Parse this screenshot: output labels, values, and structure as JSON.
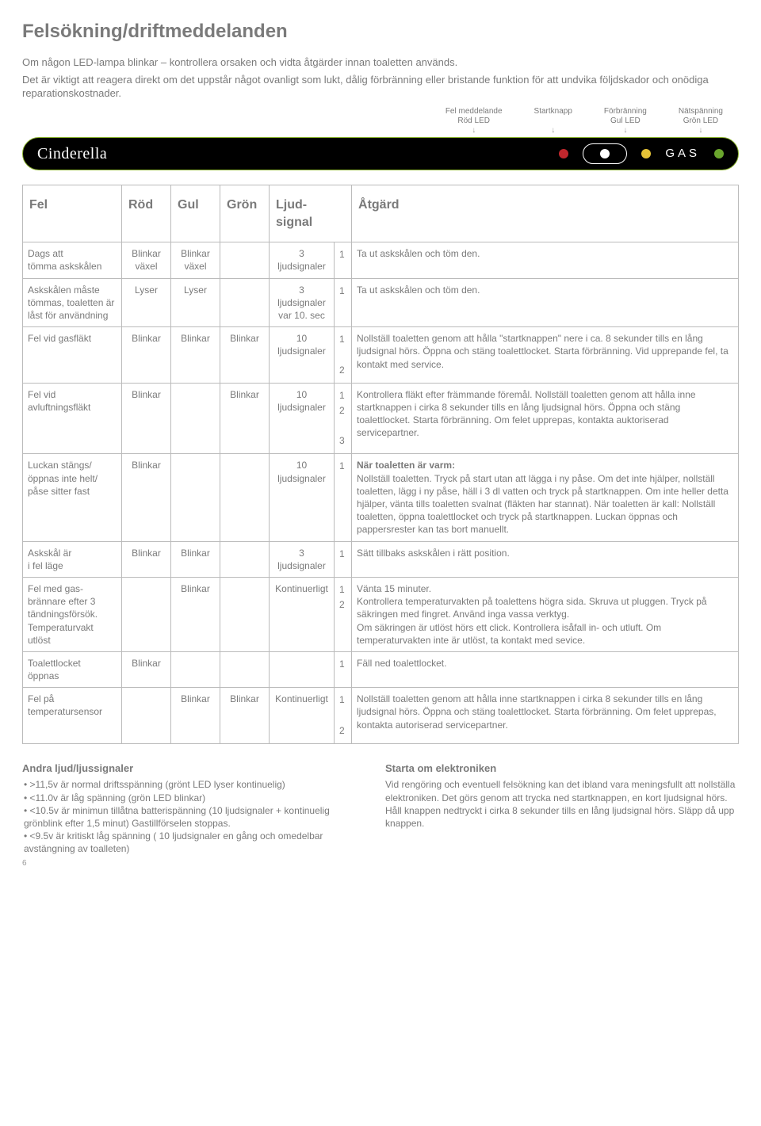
{
  "title": "Felsökning/driftmeddelanden",
  "intro_p1": "Om någon LED-lampa blinkar – kontrollera orsaken och vidta åtgärder innan toaletten används.",
  "intro_p2": "Det är viktigt att reagera direkt om det uppstår något ovanligt som lukt, dålig förbränning eller bristande funktion för att undvika följdskador och onödiga reparationskostnader.",
  "legend": {
    "l1a": "Fel meddelande",
    "l1b": "Röd LED",
    "l2a": "Startknapp",
    "l2b": "",
    "l3a": "Förbränning",
    "l3b": "Gul LED",
    "l4a": "Nätspänning",
    "l4b": "Grön LED"
  },
  "panel": {
    "brand": "Cinderella",
    "gas": "GAS",
    "colors": {
      "red": "#c1272d",
      "white": "#ffffff",
      "yellow": "#e7c437",
      "green": "#6aa52d"
    }
  },
  "headers": {
    "fel": "Fel",
    "rod": "Röd",
    "gul": "Gul",
    "gron": "Grön",
    "sig": "Ljud-\nsignal",
    "atgard": "Åtgärd"
  },
  "rows": [
    {
      "fel": "Dags att\ntömma askskålen",
      "rod": "Blinkar\nväxel",
      "gul": "Blinkar\nväxel",
      "gron": "",
      "sig": "3\nljudsignaler",
      "nums": "1",
      "act": "Ta ut askskålen och töm den."
    },
    {
      "fel": "Askskålen måste\ntömmas, toaletten är\nlåst för användning",
      "rod": "Lyser",
      "gul": "Lyser",
      "gron": "",
      "sig": "3\nljudsignaler\nvar 10. sec",
      "nums": "1",
      "act": "Ta ut askskålen och töm den."
    },
    {
      "fel": "Fel vid gasfläkt",
      "rod": "Blinkar",
      "gul": "Blinkar",
      "gron": "Blinkar",
      "sig": "10\nljudsignaler",
      "nums": "1\n\n2",
      "act": "Nollställ toaletten genom att hålla \"startknappen\" nere i ca. 8 sekunder tills en lång ljudsignal hörs. Öppna och stäng toalettlocket. Starta förbränning. Vid upprepande fel, ta kontakt med service."
    },
    {
      "fel": "Fel vid avluftningsfläkt",
      "rod": "Blinkar",
      "gul": "",
      "gron": "Blinkar",
      "sig": "10\nljudsignaler",
      "nums": "1\n2\n\n3",
      "act": "Kontrollera fläkt efter främmande föremål. Nollställ toaletten genom att hålla inne startknappen i cirka 8 sekunder tills en lång ljudsignal hörs. Öppna och stäng toalettlocket. Starta förbränning. Om felet upprepas, kontakta auktoriserad servicepartner."
    },
    {
      "fel": "Luckan stängs/\nöppnas inte helt/\npåse sitter fast",
      "rod": "Blinkar",
      "gul": "",
      "gron": "",
      "sig": "10\nljudsignaler",
      "nums": "1",
      "act_bold": "När toaletten är varm:",
      "act": "Nollställ toaletten. Tryck på start utan att lägga i ny påse. Om det inte hjälper, nollställ toaletten, lägg i ny påse, häll i 3 dl vatten och tryck på startknappen. Om inte heller detta hjälper, vänta tills toaletten svalnat (fläkten har stannat). När toaletten är kall: Nollställ toaletten, öppna toalettlocket och tryck på startknappen. Luckan öppnas och pappersrester kan tas bort manuellt."
    },
    {
      "fel": "Askskål är\ni fel läge",
      "rod": "Blinkar",
      "gul": "Blinkar",
      "gron": "",
      "sig": "3\nljudsignaler",
      "nums": "1",
      "act": "Sätt tillbaks askskålen i rätt position."
    },
    {
      "fel": "Fel med gas-\nbrännare efter 3\ntändningsförsök.\nTemperaturvakt\nutlöst",
      "rod": "",
      "gul": "Blinkar",
      "gron": "",
      "sig": "Kontinuerligt",
      "nums": "1\n2",
      "act": "Vänta 15 minuter.\nKontrollera temperaturvakten på toalettens högra sida. Skruva ut pluggen. Tryck på säkringen med fingret. Använd inga vassa verktyg.\nOm säkringen är utlöst hörs ett click. Kontrollera isåfall in- och utluft. Om temperaturvakten inte är utlöst, ta kontakt med sevice."
    },
    {
      "fel": "Toalettlocket\nöppnas",
      "rod": "Blinkar",
      "gul": "",
      "gron": "",
      "sig": "",
      "nums": "1",
      "act": "Fäll ned toalettlocket."
    },
    {
      "fel": "Fel på\ntemperatursensor",
      "rod": "",
      "gul": "Blinkar",
      "gron": "Blinkar",
      "sig": "Kontinuerligt",
      "nums": "1\n\n2",
      "act": "Nollställ toaletten genom att hålla inne startknappen i cirka 8 sekunder tills en lång ljudsignal hörs. Öppna och stäng toalettlocket. Starta förbränning. Om felet upprepas, kontakta autoriserad servicepartner."
    }
  ],
  "bottom": {
    "left_title": "Andra ljud/ljussignaler",
    "b1": "• >11,5v är normal driftsspänning (grönt LED lyser kontinuelig)",
    "b2": "• <11.0v är låg spänning (grön LED blinkar)",
    "b3": "• <10.5v är minimun tillåtna batterispänning (10 ljudsignaler + kontinuelig grönblink efter 1,5 minut) Gastillförselen stoppas.",
    "b4": "• <9.5v är kritiskt låg spänning ( 10 ljudsignaler en gång och omedelbar avstängning av toalleten)",
    "right_title": "Starta om elektroniken",
    "right_body": "Vid rengöring och eventuell felsökning kan det ibland vara meningsfullt att nollställa elektroniken. Det görs genom att trycka ned startknappen, en kort ljudsignal hörs. Håll knappen nedtryckt i cirka 8 sekunder tills en lång ljudsignal hörs. Släpp då upp knappen."
  },
  "pagenum": "6"
}
